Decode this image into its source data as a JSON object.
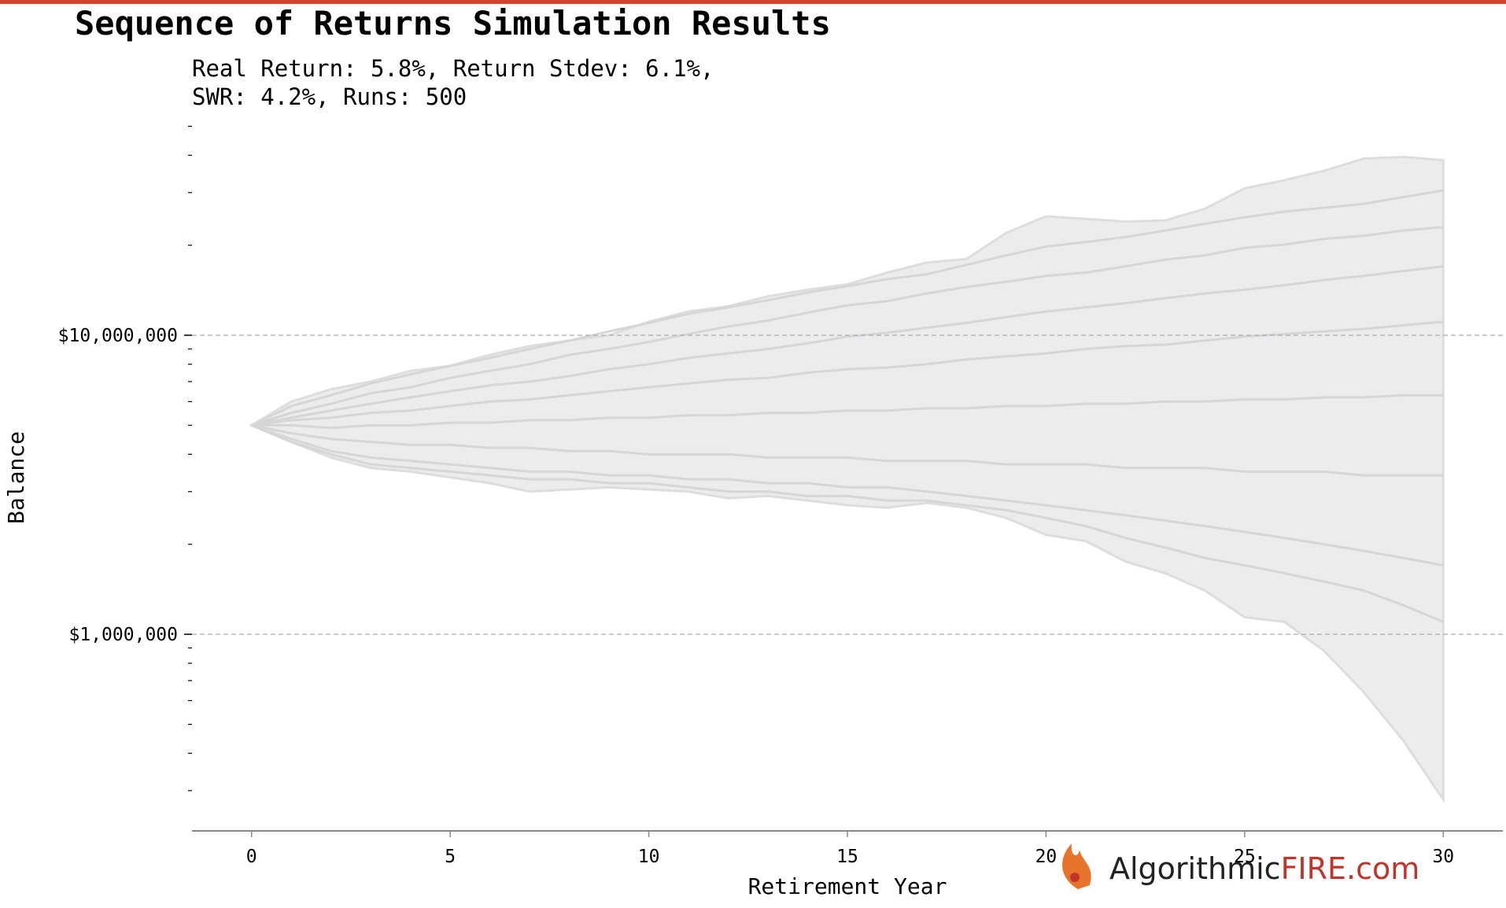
{
  "chart_data": {
    "type": "line",
    "title": "Sequence of Returns Simulation Results",
    "subtitle_lines": [
      "Real Return: 5.8%, Return Stdev: 6.1%,",
      "SWR: 4.2%, Runs: 500"
    ],
    "x_label": "Retirement Year",
    "y_label": "Balance",
    "watermark": [
      "Algorithmic",
      "FIRE.com"
    ],
    "log_y": true,
    "grid": true,
    "x": [
      0,
      1,
      2,
      3,
      4,
      5,
      6,
      7,
      8,
      9,
      10,
      11,
      12,
      13,
      14,
      15,
      16,
      17,
      18,
      19,
      20,
      21,
      22,
      23,
      24,
      25,
      26,
      27,
      28,
      29,
      30
    ],
    "xlim": [
      -1.5,
      31.5
    ],
    "xticks": [
      0,
      5,
      10,
      15,
      20,
      25,
      30
    ],
    "ylim": [
      220000,
      52000000
    ],
    "yticks": [
      {
        "value": 1000000,
        "label": "$1,000,000"
      },
      {
        "value": 10000000,
        "label": "$10,000,000"
      }
    ],
    "yminorticks": [
      300000,
      400000,
      500000,
      600000,
      700000,
      800000,
      900000,
      2000000,
      3000000,
      4000000,
      5000000,
      6000000,
      7000000,
      8000000,
      9000000,
      20000000,
      30000000,
      40000000,
      50000000
    ],
    "band": {
      "color": "#ececec",
      "upper": [
        5000000,
        6000000,
        6600000,
        7000000,
        7600000,
        7900000,
        8600000,
        9200000,
        9600000,
        10000000,
        11100000,
        12000000,
        12500000,
        13500000,
        14200000,
        14800000,
        16200000,
        17500000,
        18000000,
        22000000,
        25000000,
        24500000,
        24000000,
        24200000,
        26500000,
        31000000,
        33000000,
        35500000,
        39000000,
        39500000,
        38500000
      ],
      "lower": [
        5000000,
        4400000,
        3900000,
        3600000,
        3500000,
        3350000,
        3200000,
        3000000,
        3050000,
        3100000,
        3050000,
        3000000,
        2850000,
        2900000,
        2800000,
        2700000,
        2650000,
        2750000,
        2650000,
        2450000,
        2150000,
        2050000,
        1750000,
        1600000,
        1400000,
        1140000,
        1100000,
        880000,
        640000,
        440000,
        280000
      ]
    },
    "series": [
      {
        "color": "#d6d6d6",
        "values": [
          5000000,
          5800000,
          6300000,
          6900000,
          7400000,
          7900000,
          8400000,
          9000000,
          9600000,
          10300000,
          11000000,
          11800000,
          12400000,
          13100000,
          13900000,
          14600000,
          15400000,
          16000000,
          17200000,
          18500000,
          19800000,
          20500000,
          21300000,
          22400000,
          23600000,
          24800000,
          25900000,
          26700000,
          27500000,
          29000000,
          30500000
        ]
      },
      {
        "color": "#d6d6d6",
        "values": [
          5000000,
          5500000,
          5900000,
          6400000,
          6700000,
          7200000,
          7600000,
          8000000,
          8600000,
          9000000,
          9500000,
          10100000,
          10700000,
          11200000,
          11900000,
          12600000,
          13000000,
          13800000,
          14500000,
          15100000,
          15800000,
          16200000,
          17000000,
          17900000,
          18500000,
          19600000,
          20100000,
          21000000,
          21500000,
          22400000,
          23000000
        ]
      },
      {
        "color": "#d6d6d6",
        "values": [
          5000000,
          5300000,
          5600000,
          5900000,
          6200000,
          6500000,
          6800000,
          7000000,
          7300000,
          7700000,
          8000000,
          8400000,
          8700000,
          9000000,
          9400000,
          9900000,
          10200000,
          10600000,
          11000000,
          11500000,
          12000000,
          12400000,
          12800000,
          13300000,
          13800000,
          14200000,
          14700000,
          15300000,
          15800000,
          16400000,
          17000000
        ]
      },
      {
        "color": "#d6d6d6",
        "values": [
          5000000,
          5200000,
          5300000,
          5500000,
          5600000,
          5800000,
          6000000,
          6100000,
          6300000,
          6500000,
          6700000,
          6900000,
          7100000,
          7200000,
          7500000,
          7700000,
          7800000,
          8000000,
          8300000,
          8500000,
          8700000,
          9000000,
          9200000,
          9300000,
          9600000,
          9900000,
          10100000,
          10300000,
          10500000,
          10800000,
          11100000
        ]
      },
      {
        "color": "#d6d6d6",
        "values": [
          5000000,
          5000000,
          4900000,
          5000000,
          5000000,
          5100000,
          5100000,
          5200000,
          5200000,
          5300000,
          5300000,
          5400000,
          5400000,
          5500000,
          5500000,
          5600000,
          5600000,
          5700000,
          5700000,
          5800000,
          5800000,
          5900000,
          5900000,
          6000000,
          6000000,
          6100000,
          6100000,
          6200000,
          6200000,
          6300000,
          6300000
        ]
      },
      {
        "color": "#d6d6d6",
        "values": [
          5000000,
          4700000,
          4500000,
          4400000,
          4300000,
          4300000,
          4200000,
          4200000,
          4100000,
          4100000,
          4000000,
          4000000,
          4000000,
          3900000,
          3900000,
          3900000,
          3800000,
          3800000,
          3800000,
          3700000,
          3700000,
          3700000,
          3600000,
          3600000,
          3600000,
          3500000,
          3500000,
          3500000,
          3400000,
          3400000,
          3400000
        ]
      },
      {
        "color": "#d6d6d6",
        "values": [
          5000000,
          4500000,
          4100000,
          3900000,
          3800000,
          3700000,
          3600000,
          3500000,
          3500000,
          3400000,
          3400000,
          3300000,
          3300000,
          3200000,
          3200000,
          3100000,
          3100000,
          3000000,
          2900000,
          2800000,
          2700000,
          2600000,
          2500000,
          2400000,
          2300000,
          2200000,
          2100000,
          2000000,
          1900000,
          1800000,
          1700000
        ]
      },
      {
        "color": "#d6d6d6",
        "values": [
          5000000,
          4400000,
          4000000,
          3700000,
          3600000,
          3500000,
          3400000,
          3300000,
          3300000,
          3200000,
          3200000,
          3100000,
          3000000,
          3000000,
          2900000,
          2900000,
          2800000,
          2800000,
          2700000,
          2600000,
          2450000,
          2300000,
          2100000,
          1950000,
          1800000,
          1700000,
          1600000,
          1500000,
          1400000,
          1250000,
          1100000
        ]
      }
    ]
  }
}
